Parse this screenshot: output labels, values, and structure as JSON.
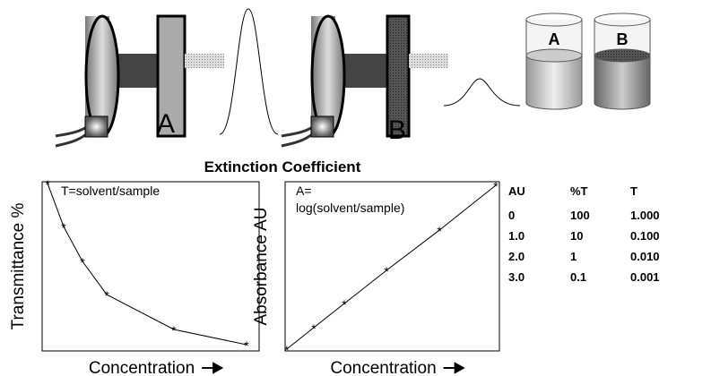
{
  "illustrations": {
    "detector_labels": [
      "A",
      "B"
    ],
    "cuvette_labels": [
      "A",
      "B"
    ]
  },
  "title": "Extinction Coefficient",
  "chart_data": [
    {
      "type": "line",
      "y_label": "Transmittance %",
      "x_label": "Concentration",
      "annotation": [
        "T=solvent/sample"
      ],
      "x": [
        2.5,
        9.9,
        18.6,
        29.8,
        60.7,
        94.2
      ],
      "values": [
        99,
        73.5,
        52.9,
        33.3,
        12.7,
        3.7
      ],
      "xlim": [
        0,
        100
      ],
      "ylim": [
        0,
        100
      ],
      "marker": "*",
      "color": "#000000"
    },
    {
      "type": "line",
      "y_label": "Absorbance AU",
      "x_label": "Concentration",
      "annotation": [
        "A=",
        "log(solvent/sample)"
      ],
      "x": [
        0.8,
        13.4,
        27.6,
        47.3,
        72,
        98.3
      ],
      "values": [
        1.1,
        13.8,
        28,
        47.6,
        71.4,
        97.9
      ],
      "xlim": [
        0,
        100
      ],
      "ylim": [
        0,
        100
      ],
      "marker": "*",
      "color": "#000000"
    }
  ],
  "table": {
    "header": [
      "AU",
      "%T",
      "T"
    ],
    "rows": [
      [
        "0",
        "100",
        "1.000"
      ],
      [
        "1.0",
        "10",
        "0.100"
      ],
      [
        "2.0",
        "1",
        "0.010"
      ],
      [
        "3.0",
        "0.1",
        "0.001"
      ]
    ]
  }
}
